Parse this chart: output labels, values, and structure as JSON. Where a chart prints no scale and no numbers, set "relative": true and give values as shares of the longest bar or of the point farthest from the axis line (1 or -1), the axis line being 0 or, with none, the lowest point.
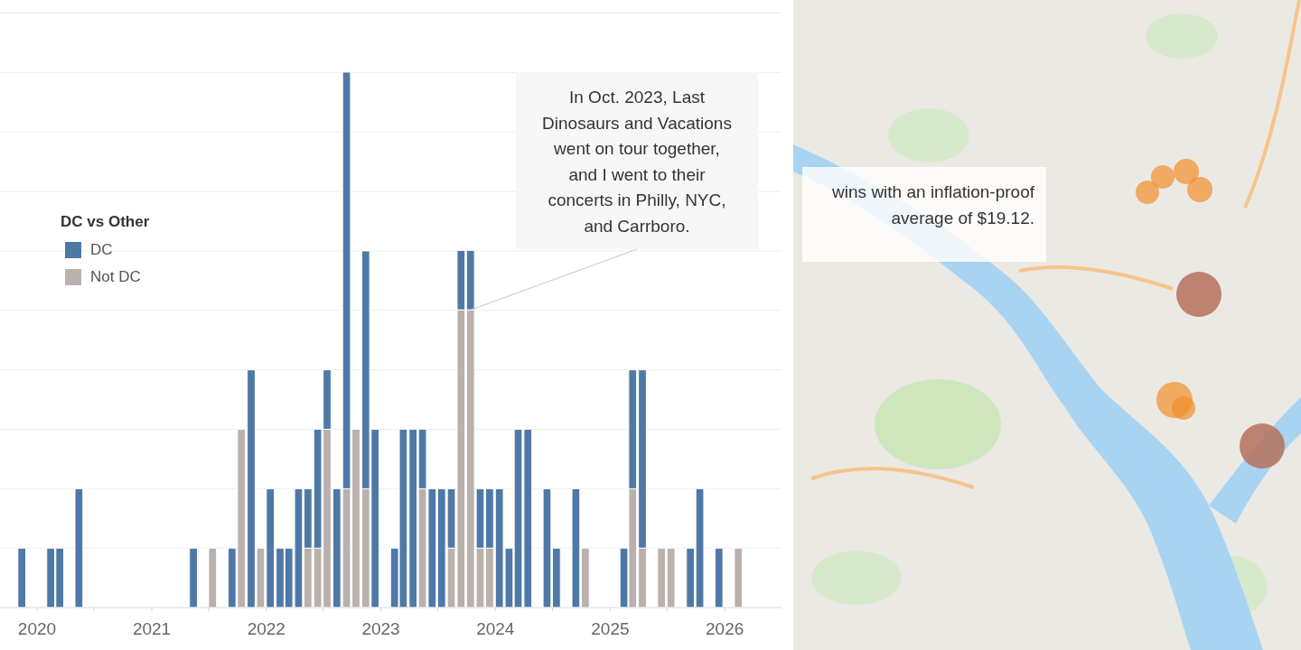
{
  "chart_data": [
    {
      "type": "bar",
      "stacked": true,
      "relative": true,
      "x": [
        "2019-11-15",
        "2020-02-15",
        "2020-03-15",
        "2020-05-15",
        "2021-05-15",
        "2021-07-15",
        "2021-09-15",
        "2021-10-15",
        "2021-11-15",
        "2021-12-15",
        "2022-01-15",
        "2022-02-15",
        "2022-03-15",
        "2022-04-15",
        "2022-05-15",
        "2022-06-15",
        "2022-07-15",
        "2022-08-15",
        "2022-09-15",
        "2022-10-15",
        "2022-11-15",
        "2022-12-15",
        "2023-02-15",
        "2023-03-15",
        "2023-04-15",
        "2023-05-15",
        "2023-06-15",
        "2023-07-15",
        "2023-08-15",
        "2023-09-15",
        "2023-10-15",
        "2023-11-15",
        "2023-12-15",
        "2024-01-15",
        "2024-02-15",
        "2024-03-15",
        "2024-04-15",
        "2024-06-15",
        "2024-07-15",
        "2024-09-15",
        "2024-10-15",
        "2025-02-15",
        "2025-03-15",
        "2025-04-15",
        "2025-06-15",
        "2025-07-15",
        "2025-09-15",
        "2025-10-15",
        "2025-12-15",
        "2026-02-15"
      ],
      "series": [
        {
          "name": "Not DC",
          "color": "#bab0ac",
          "values": [
            null,
            null,
            null,
            null,
            null,
            0.111,
            null,
            0.333,
            null,
            0.111,
            null,
            null,
            null,
            null,
            0.111,
            0.111,
            0.333,
            null,
            0.222,
            0.333,
            0.222,
            null,
            null,
            null,
            null,
            0.222,
            null,
            null,
            0.111,
            0.556,
            0.556,
            0.111,
            0.111,
            null,
            null,
            null,
            null,
            null,
            null,
            null,
            0.111,
            null,
            0.222,
            0.111,
            0.111,
            0.111,
            null,
            null,
            null,
            0.111
          ]
        },
        {
          "name": "DC",
          "color": "#4e79a7",
          "values": [
            0.111,
            0.111,
            0.111,
            0.222,
            0.111,
            null,
            0.111,
            null,
            0.444,
            null,
            0.222,
            0.111,
            0.111,
            0.222,
            0.111,
            0.222,
            0.111,
            0.222,
            0.778,
            null,
            0.444,
            0.333,
            0.111,
            0.333,
            0.333,
            0.111,
            0.222,
            0.222,
            0.111,
            0.111,
            0.111,
            0.111,
            0.111,
            0.222,
            0.111,
            0.333,
            0.333,
            0.222,
            0.111,
            0.222,
            null,
            0.111,
            0.222,
            0.333,
            null,
            null,
            0.111,
            0.222,
            0.111,
            null
          ]
        }
      ],
      "xlim": [
        "2019-09-05",
        "2026-07"
      ],
      "xticks": [
        "2020",
        {
          "value": "2020-07",
          "label": null
        },
        "2021",
        {
          "value": "2021-07",
          "label": null
        },
        "2022",
        {
          "value": "2022-07",
          "label": null
        },
        "2023",
        {
          "value": "2023-07",
          "label": null
        },
        "2024",
        {
          "value": "2024-07",
          "label": null
        },
        "2025",
        {
          "value": "2025-07",
          "label": null
        },
        "2026"
      ],
      "grid": "y",
      "legend": "left",
      "legend_title": "DC vs Other",
      "annotations": [
        {
          "text": "In Oct. 2023, Last Dinosaurs and Vacations went on tour together, and I went to their concerts in Philly, NYC, and Carrboro.",
          "x": "2023-10-15",
          "y": 0.556
        }
      ]
    },
    {
      "type": "other",
      "annotations": [
        "wins with an inflation-proof average of $19.12."
      ]
    }
  ]
}
